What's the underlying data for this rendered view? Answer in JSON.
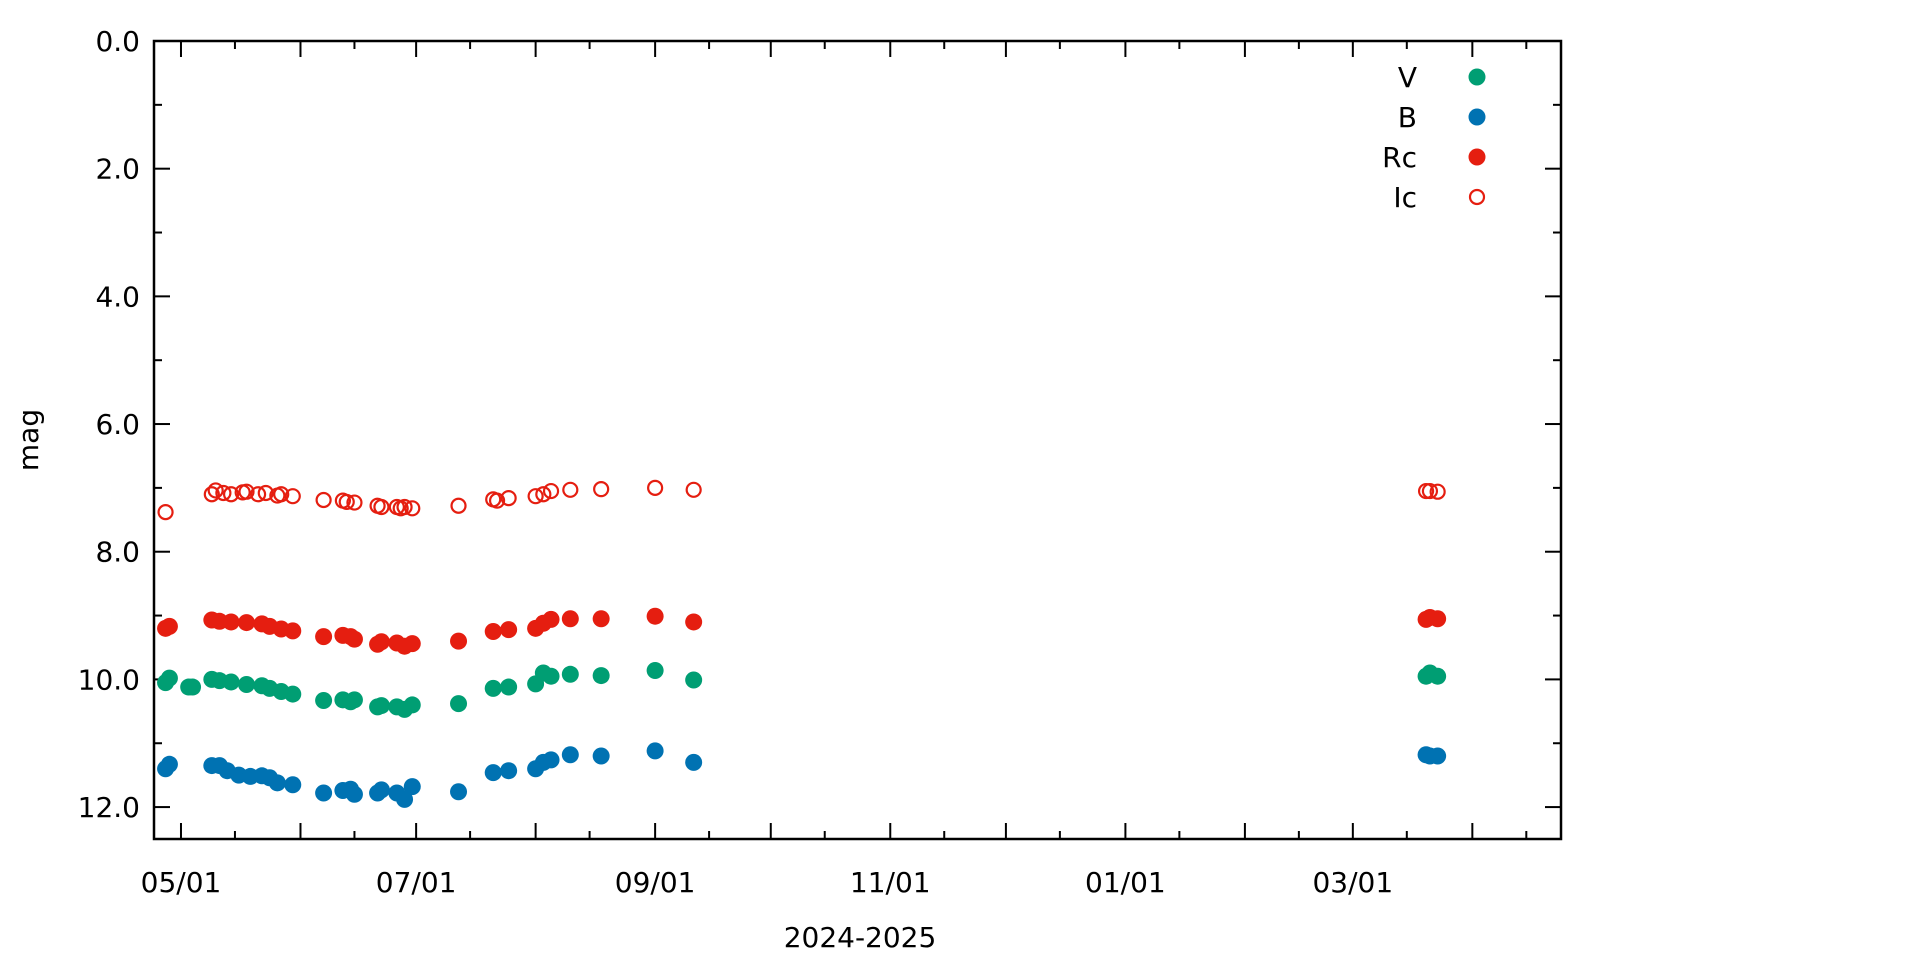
{
  "chart_data": {
    "type": "scatter",
    "title": "",
    "xlabel": "2024-2025",
    "ylabel": "mag",
    "x_ticks": [
      {
        "date": "2024-05-01",
        "label": "05/01"
      },
      {
        "date": "2024-07-01",
        "label": "07/01"
      },
      {
        "date": "2024-09-01",
        "label": "09/01"
      },
      {
        "date": "2024-11-01",
        "label": "11/01"
      },
      {
        "date": "2025-01-01",
        "label": "01/01"
      },
      {
        "date": "2025-03-01",
        "label": "03/01"
      }
    ],
    "xlim": [
      "2024-04-24",
      "2025-04-24"
    ],
    "ylim": [
      0.0,
      12.5
    ],
    "y_reversed": true,
    "y_ticks": [
      0.0,
      2.0,
      4.0,
      6.0,
      8.0,
      10.0,
      12.0
    ],
    "y_tick_labels": [
      "0.0",
      "2.0",
      "4.0",
      "6.0",
      "8.0",
      "10.0",
      "12.0"
    ],
    "grid": false,
    "legend_position": "top-right",
    "series": [
      {
        "name": "V",
        "color": "#009e73",
        "marker": "filled-circle",
        "points": [
          [
            "2024-04-27",
            10.05
          ],
          [
            "2024-04-28",
            9.98
          ],
          [
            "2024-05-03",
            10.12
          ],
          [
            "2024-05-04",
            10.12
          ],
          [
            "2024-05-09",
            10.0
          ],
          [
            "2024-05-11",
            10.02
          ],
          [
            "2024-05-14",
            10.04
          ],
          [
            "2024-05-18",
            10.08
          ],
          [
            "2024-05-22",
            10.1
          ],
          [
            "2024-05-24",
            10.14
          ],
          [
            "2024-05-27",
            10.19
          ],
          [
            "2024-05-30",
            10.23
          ],
          [
            "2024-06-07",
            10.33
          ],
          [
            "2024-06-12",
            10.32
          ],
          [
            "2024-06-14",
            10.35
          ],
          [
            "2024-06-15",
            10.32
          ],
          [
            "2024-06-21",
            10.43
          ],
          [
            "2024-06-22",
            10.41
          ],
          [
            "2024-06-26",
            10.43
          ],
          [
            "2024-06-28",
            10.47
          ],
          [
            "2024-06-30",
            10.4
          ],
          [
            "2024-07-12",
            10.38
          ],
          [
            "2024-07-21",
            10.14
          ],
          [
            "2024-07-25",
            10.12
          ],
          [
            "2024-08-01",
            10.07
          ],
          [
            "2024-08-03",
            9.9
          ],
          [
            "2024-08-05",
            9.95
          ],
          [
            "2024-08-10",
            9.92
          ],
          [
            "2024-08-18",
            9.94
          ],
          [
            "2024-09-01",
            9.86
          ],
          [
            "2024-09-11",
            10.01
          ],
          [
            "2025-03-20",
            9.95
          ],
          [
            "2025-03-21",
            9.9
          ],
          [
            "2025-03-23",
            9.95
          ]
        ]
      },
      {
        "name": "B",
        "color": "#0072b2",
        "marker": "filled-circle",
        "points": [
          [
            "2024-04-27",
            11.4
          ],
          [
            "2024-04-28",
            11.33
          ],
          [
            "2024-05-09",
            11.35
          ],
          [
            "2024-05-11",
            11.35
          ],
          [
            "2024-05-13",
            11.43
          ],
          [
            "2024-05-16",
            11.5
          ],
          [
            "2024-05-19",
            11.52
          ],
          [
            "2024-05-22",
            11.51
          ],
          [
            "2024-05-24",
            11.54
          ],
          [
            "2024-05-26",
            11.62
          ],
          [
            "2024-05-30",
            11.65
          ],
          [
            "2024-06-07",
            11.78
          ],
          [
            "2024-06-12",
            11.74
          ],
          [
            "2024-06-14",
            11.72
          ],
          [
            "2024-06-15",
            11.8
          ],
          [
            "2024-06-21",
            11.78
          ],
          [
            "2024-06-22",
            11.73
          ],
          [
            "2024-06-26",
            11.78
          ],
          [
            "2024-06-28",
            11.88
          ],
          [
            "2024-06-30",
            11.68
          ],
          [
            "2024-07-12",
            11.76
          ],
          [
            "2024-07-21",
            11.46
          ],
          [
            "2024-07-25",
            11.43
          ],
          [
            "2024-08-01",
            11.4
          ],
          [
            "2024-08-03",
            11.3
          ],
          [
            "2024-08-05",
            11.26
          ],
          [
            "2024-08-10",
            11.18
          ],
          [
            "2024-08-18",
            11.2
          ],
          [
            "2024-09-01",
            11.12
          ],
          [
            "2024-09-11",
            11.3
          ],
          [
            "2025-03-20",
            11.18
          ],
          [
            "2025-03-21",
            11.2
          ],
          [
            "2025-03-23",
            11.2
          ]
        ]
      },
      {
        "name": "Rc",
        "color": "#e51e10",
        "marker": "filled-circle",
        "points": [
          [
            "2024-04-27",
            9.2
          ],
          [
            "2024-04-28",
            9.17
          ],
          [
            "2024-05-09",
            9.07
          ],
          [
            "2024-05-11",
            9.09
          ],
          [
            "2024-05-14",
            9.1
          ],
          [
            "2024-05-18",
            9.11
          ],
          [
            "2024-05-22",
            9.13
          ],
          [
            "2024-05-24",
            9.17
          ],
          [
            "2024-05-27",
            9.21
          ],
          [
            "2024-05-30",
            9.24
          ],
          [
            "2024-06-07",
            9.33
          ],
          [
            "2024-06-12",
            9.31
          ],
          [
            "2024-06-14",
            9.33
          ],
          [
            "2024-06-15",
            9.37
          ],
          [
            "2024-06-21",
            9.45
          ],
          [
            "2024-06-22",
            9.41
          ],
          [
            "2024-06-26",
            9.43
          ],
          [
            "2024-06-28",
            9.48
          ],
          [
            "2024-06-30",
            9.44
          ],
          [
            "2024-07-12",
            9.4
          ],
          [
            "2024-07-21",
            9.25
          ],
          [
            "2024-07-25",
            9.22
          ],
          [
            "2024-08-01",
            9.2
          ],
          [
            "2024-08-03",
            9.12
          ],
          [
            "2024-08-05",
            9.06
          ],
          [
            "2024-08-10",
            9.05
          ],
          [
            "2024-08-18",
            9.05
          ],
          [
            "2024-09-01",
            9.01
          ],
          [
            "2024-09-11",
            9.1
          ],
          [
            "2025-03-20",
            9.06
          ],
          [
            "2025-03-21",
            9.03
          ],
          [
            "2025-03-23",
            9.05
          ]
        ]
      },
      {
        "name": "Ic",
        "color": "#e51e10",
        "marker": "open-circle",
        "points": [
          [
            "2024-04-27",
            7.38
          ],
          [
            "2024-05-09",
            7.1
          ],
          [
            "2024-05-10",
            7.04
          ],
          [
            "2024-05-12",
            7.08
          ],
          [
            "2024-05-14",
            7.1
          ],
          [
            "2024-05-17",
            7.07
          ],
          [
            "2024-05-18",
            7.06
          ],
          [
            "2024-05-21",
            7.1
          ],
          [
            "2024-05-23",
            7.08
          ],
          [
            "2024-05-26",
            7.12
          ],
          [
            "2024-05-27",
            7.1
          ],
          [
            "2024-05-30",
            7.13
          ],
          [
            "2024-06-07",
            7.19
          ],
          [
            "2024-06-12",
            7.2
          ],
          [
            "2024-06-13",
            7.22
          ],
          [
            "2024-06-15",
            7.23
          ],
          [
            "2024-06-21",
            7.28
          ],
          [
            "2024-06-22",
            7.3
          ],
          [
            "2024-06-26",
            7.3
          ],
          [
            "2024-06-27",
            7.32
          ],
          [
            "2024-06-28",
            7.3
          ],
          [
            "2024-06-30",
            7.32
          ],
          [
            "2024-07-12",
            7.28
          ],
          [
            "2024-07-21",
            7.18
          ],
          [
            "2024-07-22",
            7.2
          ],
          [
            "2024-07-25",
            7.16
          ],
          [
            "2024-08-01",
            7.13
          ],
          [
            "2024-08-03",
            7.1
          ],
          [
            "2024-08-05",
            7.05
          ],
          [
            "2024-08-10",
            7.03
          ],
          [
            "2024-08-18",
            7.02
          ],
          [
            "2024-09-01",
            7.0
          ],
          [
            "2024-09-11",
            7.03
          ],
          [
            "2025-03-20",
            7.05
          ],
          [
            "2025-03-21",
            7.05
          ],
          [
            "2025-03-23",
            7.06
          ]
        ]
      }
    ]
  }
}
